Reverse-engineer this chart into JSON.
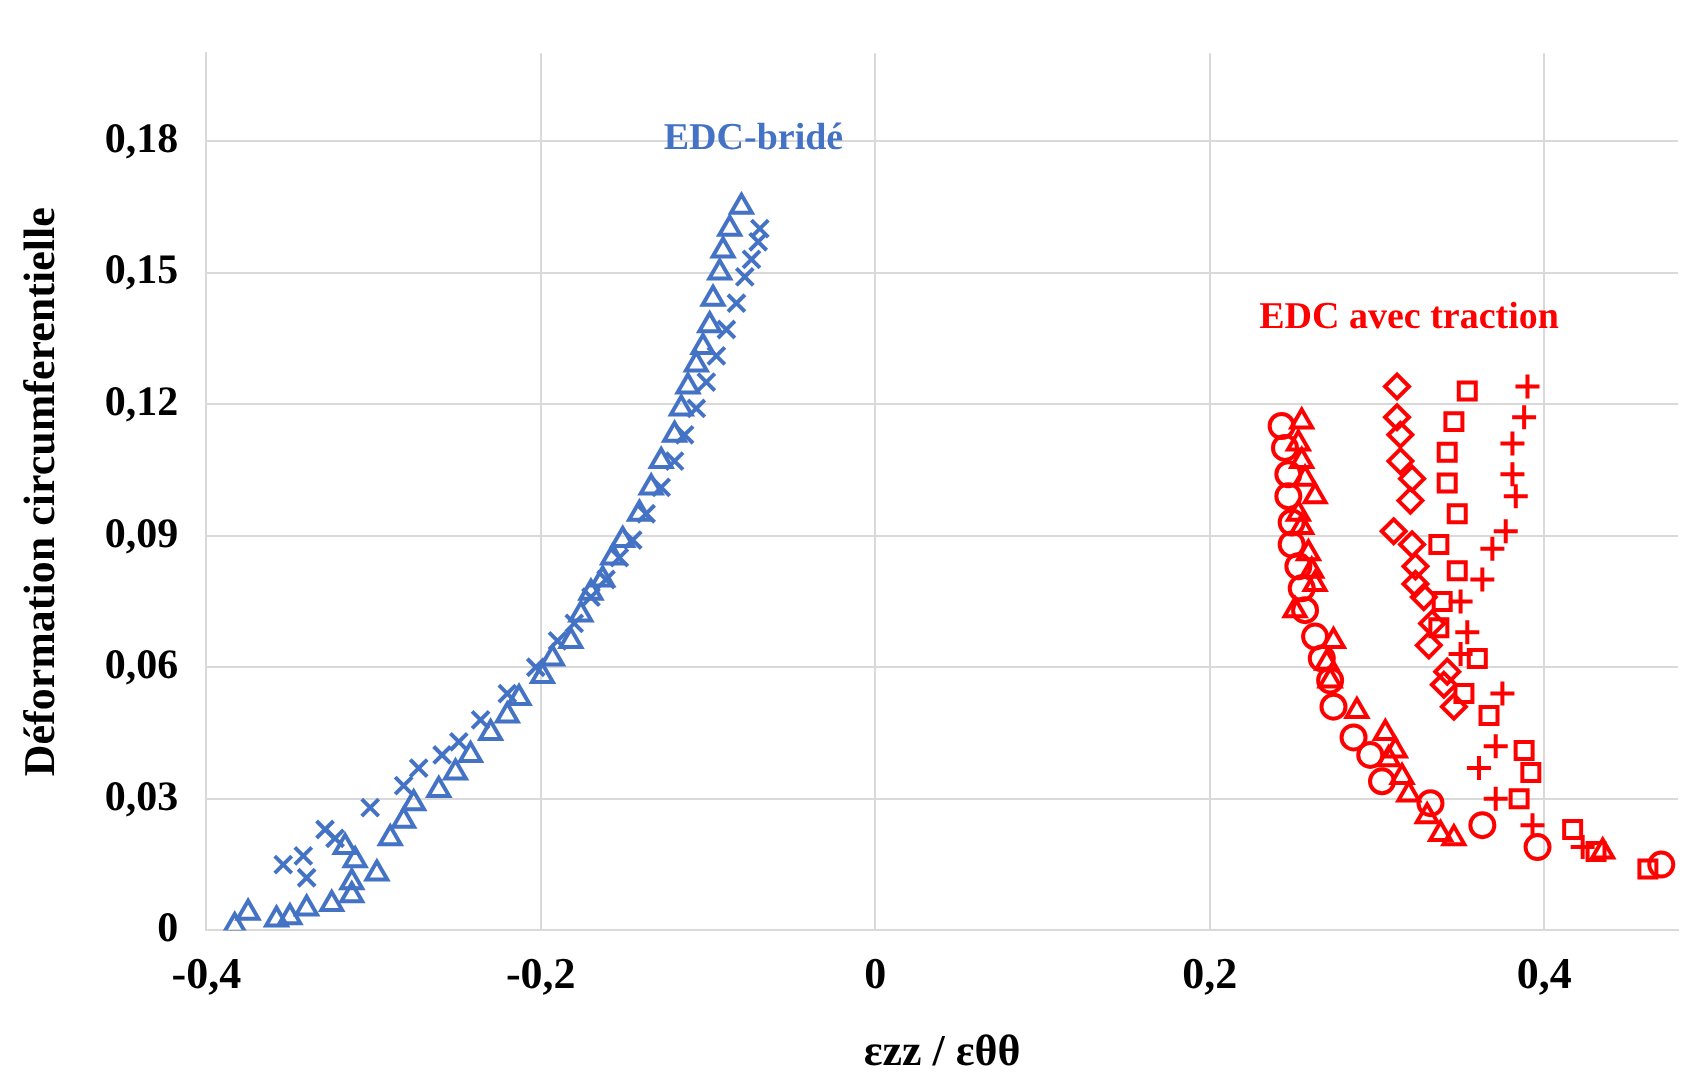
{
  "chart_data": {
    "type": "scatter",
    "xlabel": "εzz / εθθ",
    "ylabel": "Déformation circumferentielle",
    "xlim": [
      -0.4,
      0.48
    ],
    "ylim": [
      0,
      0.2
    ],
    "xticks": [
      {
        "value": -0.4,
        "label": "-0,4"
      },
      {
        "value": -0.2,
        "label": "-0,2"
      },
      0,
      {
        "value": 0.2,
        "label": "0,2"
      },
      {
        "value": 0.4,
        "label": "0,4"
      }
    ],
    "yticks": [
      0,
      {
        "value": 0.03,
        "label": "0,03"
      },
      {
        "value": 0.06,
        "label": "0,06"
      },
      {
        "value": 0.09,
        "label": "0,09"
      },
      {
        "value": 0.12,
        "label": "0,12"
      },
      {
        "value": 0.15,
        "label": "0,15"
      },
      {
        "value": 0.18,
        "label": "0,18"
      }
    ],
    "grid": true,
    "legend": false,
    "series": [
      {
        "name": "EDC-bridé",
        "color": "#4472c4",
        "marker": "triangle",
        "x": [
          -0.383,
          -0.375,
          -0.358,
          -0.35,
          -0.34,
          -0.325,
          -0.313,
          -0.313,
          -0.298,
          -0.311,
          -0.317,
          -0.29,
          -0.282,
          -0.276,
          -0.261,
          -0.251,
          -0.242,
          -0.23,
          -0.22,
          -0.213,
          -0.199,
          -0.193,
          -0.182,
          -0.176,
          -0.17,
          -0.163,
          -0.157,
          -0.151,
          -0.141,
          -0.134,
          -0.128,
          -0.12,
          -0.116,
          -0.112,
          -0.107,
          -0.103,
          -0.099,
          -0.097,
          -0.093,
          -0.091,
          -0.087,
          -0.08
        ],
        "values": [
          0.001,
          0.004,
          0.0025,
          0.003,
          0.005,
          0.006,
          0.008,
          0.011,
          0.013,
          0.016,
          0.019,
          0.021,
          0.025,
          0.029,
          0.032,
          0.036,
          0.04,
          0.045,
          0.049,
          0.053,
          0.058,
          0.062,
          0.066,
          0.072,
          0.077,
          0.08,
          0.085,
          0.089,
          0.095,
          0.101,
          0.107,
          0.113,
          0.119,
          0.124,
          0.129,
          0.133,
          0.138,
          0.144,
          0.15,
          0.155,
          0.16,
          0.165
        ]
      },
      {
        "color": "#4472c4",
        "marker": "x",
        "x": [
          -0.354,
          -0.34,
          -0.342,
          -0.329,
          -0.323,
          -0.302,
          -0.282,
          -0.273,
          -0.259,
          -0.249,
          -0.236,
          -0.22,
          -0.203,
          -0.19,
          -0.18,
          -0.17,
          -0.161,
          -0.153,
          -0.145,
          -0.137,
          -0.128,
          -0.12,
          -0.114,
          -0.107,
          -0.101,
          -0.095,
          -0.089,
          -0.083,
          -0.078,
          -0.074,
          -0.07,
          -0.069
        ],
        "values": [
          0.015,
          0.012,
          0.017,
          0.023,
          0.021,
          0.028,
          0.033,
          0.037,
          0.04,
          0.043,
          0.048,
          0.054,
          0.06,
          0.066,
          0.07,
          0.076,
          0.08,
          0.085,
          0.089,
          0.095,
          0.101,
          0.107,
          0.113,
          0.119,
          0.125,
          0.131,
          0.137,
          0.143,
          0.149,
          0.153,
          0.157,
          0.16
        ]
      },
      {
        "color": "#ff0000",
        "marker": "circle",
        "x": [
          0.243,
          0.245,
          0.247,
          0.247,
          0.249,
          0.249,
          0.253,
          0.255,
          0.257,
          0.263,
          0.267,
          0.272,
          0.274,
          0.286,
          0.296,
          0.303,
          0.332,
          0.363,
          0.396,
          0.47
        ],
        "values": [
          0.115,
          0.11,
          0.104,
          0.099,
          0.093,
          0.088,
          0.083,
          0.078,
          0.073,
          0.067,
          0.062,
          0.057,
          0.051,
          0.044,
          0.04,
          0.034,
          0.029,
          0.024,
          0.019,
          0.015
        ]
      },
      {
        "color": "#ff0000",
        "marker": "triangle",
        "x": [
          0.255,
          0.253,
          0.255,
          0.257,
          0.263,
          0.253,
          0.255,
          0.259,
          0.261,
          0.263,
          0.251,
          0.274,
          0.27,
          0.272,
          0.288,
          0.305,
          0.311,
          0.307,
          0.315,
          0.319,
          0.33,
          0.338,
          0.346,
          0.435
        ],
        "values": [
          0.116,
          0.111,
          0.107,
          0.103,
          0.099,
          0.095,
          0.092,
          0.086,
          0.082,
          0.079,
          0.073,
          0.066,
          0.061,
          0.057,
          0.05,
          0.045,
          0.041,
          0.039,
          0.035,
          0.031,
          0.026,
          0.022,
          0.021,
          0.018
        ]
      },
      {
        "name": "EDC avec traction",
        "color": "#ff0000",
        "marker": "diamond",
        "x": [
          0.312,
          0.312,
          0.314,
          0.314,
          0.321,
          0.32,
          0.31,
          0.321,
          0.323,
          0.323,
          0.328,
          0.333,
          0.331,
          0.342,
          0.34,
          0.346
        ],
        "values": [
          0.124,
          0.117,
          0.113,
          0.107,
          0.103,
          0.098,
          0.091,
          0.088,
          0.083,
          0.079,
          0.076,
          0.07,
          0.065,
          0.059,
          0.056,
          0.051
        ]
      },
      {
        "color": "#ff0000",
        "marker": "square",
        "x": [
          0.354,
          0.346,
          0.342,
          0.342,
          0.348,
          0.337,
          0.348,
          0.339,
          0.337,
          0.36,
          0.352,
          0.367,
          0.388,
          0.392,
          0.385,
          0.417,
          0.431,
          0.462
        ],
        "values": [
          0.123,
          0.116,
          0.109,
          0.102,
          0.095,
          0.088,
          0.082,
          0.075,
          0.069,
          0.062,
          0.054,
          0.049,
          0.041,
          0.036,
          0.03,
          0.023,
          0.018,
          0.014
        ]
      },
      {
        "color": "#ff0000",
        "marker": "cross",
        "x": [
          0.39,
          0.388,
          0.381,
          0.381,
          0.383,
          0.377,
          0.369,
          0.363,
          0.35,
          0.354,
          0.35,
          0.375,
          0.371,
          0.361,
          0.371,
          0.393,
          0.423
        ],
        "values": [
          0.124,
          0.117,
          0.111,
          0.104,
          0.099,
          0.091,
          0.087,
          0.08,
          0.075,
          0.068,
          0.063,
          0.054,
          0.042,
          0.037,
          0.03,
          0.024,
          0.019
        ]
      }
    ]
  }
}
